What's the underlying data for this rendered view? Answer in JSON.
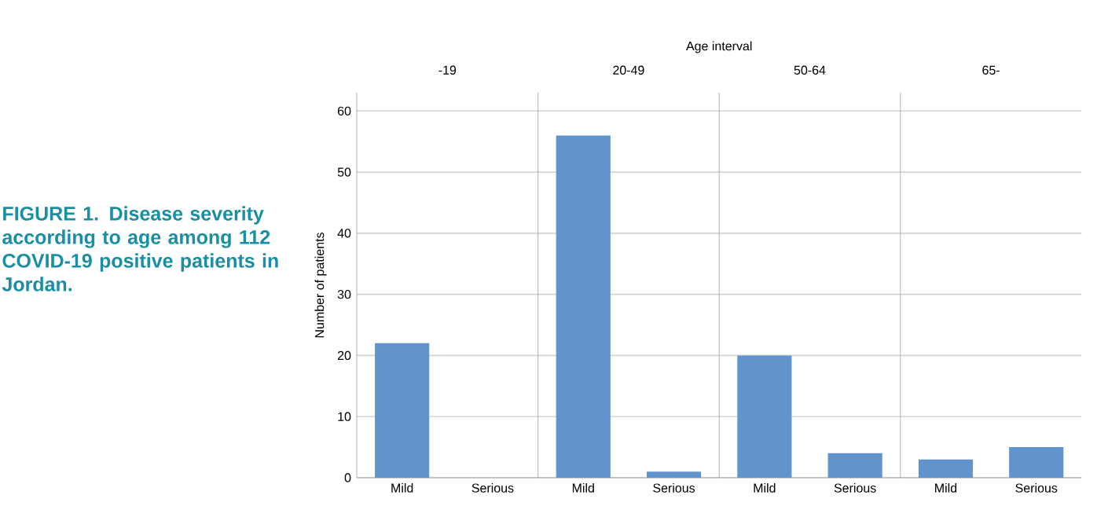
{
  "chart_data": [
    {
      "type": "bar",
      "title": "-19",
      "ylabel": "Number of patients",
      "annotations": [
        "**FIGURE 1. Disease severity according to age among 112 COVID-19 positive patients in Jordan.**",
        "Age interval"
      ],
      "categories": [
        "Mild",
        "Serious"
      ],
      "values": [
        22,
        0
      ],
      "color": "#6193cd",
      "ylim": [
        0,
        63
      ],
      "yticks": [
        0,
        10,
        20,
        30,
        40,
        50,
        60
      ],
      "grid": "y"
    },
    {
      "type": "bar",
      "title": "20-49",
      "categories": [
        "Mild",
        "Serious"
      ],
      "values": [
        56,
        1
      ],
      "color": "#6193cd",
      "ylim": [
        0,
        63
      ],
      "yticks": [
        0,
        10,
        20,
        30,
        40,
        50,
        60
      ],
      "grid": "y",
      "tick_labels": "x"
    },
    {
      "type": "bar",
      "title": "50-64",
      "categories": [
        "Mild",
        "Serious"
      ],
      "values": [
        20,
        4
      ],
      "color": "#6193cd",
      "ylim": [
        0,
        63
      ],
      "yticks": [
        0,
        10,
        20,
        30,
        40,
        50,
        60
      ],
      "grid": "y",
      "tick_labels": "x"
    },
    {
      "type": "bar",
      "title": "65-",
      "categories": [
        "Mild",
        "Serious"
      ],
      "values": [
        3,
        5
      ],
      "color": "#6193cd",
      "ylim": [
        0,
        63
      ],
      "yticks": [
        0,
        10,
        20,
        30,
        40,
        50,
        60
      ],
      "grid": "y",
      "tick_labels": "x"
    }
  ]
}
